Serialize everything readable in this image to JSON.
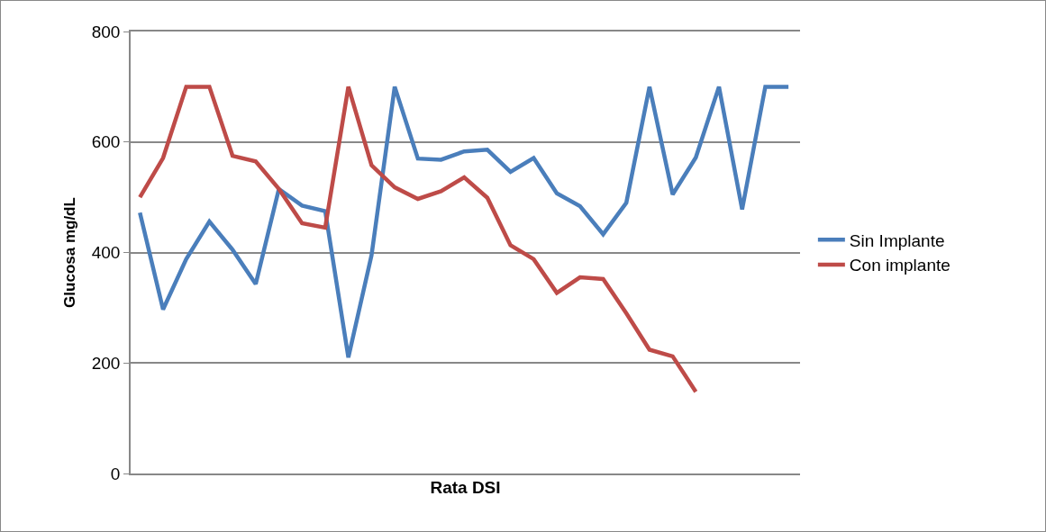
{
  "chart_data": {
    "type": "line",
    "xlabel": "Rata DSI",
    "ylabel": "Glucosa mg/dL",
    "categories": [
      null,
      null,
      null,
      null,
      null,
      null,
      null,
      null,
      null,
      null,
      null,
      null,
      null,
      null,
      null,
      null,
      null,
      null,
      null,
      null,
      null,
      null,
      null,
      null,
      null,
      null,
      null,
      null,
      null
    ],
    "series": [
      {
        "name": "Sin Implante",
        "color": "#4a7ebb",
        "values": [
          472,
          297,
          388,
          456,
          405,
          343,
          515,
          485,
          475,
          210,
          395,
          700,
          570,
          568,
          583,
          586,
          546,
          571,
          507,
          484,
          433,
          490,
          700,
          505,
          572,
          700,
          478,
          700,
          700
        ]
      },
      {
        "name": "Con implante",
        "color": "#be4b48",
        "values": [
          500,
          571,
          700,
          700,
          575,
          565,
          515,
          453,
          445,
          700,
          558,
          518,
          497,
          511,
          536,
          499,
          413,
          388,
          327,
          355,
          352,
          290,
          224,
          212,
          148,
          null,
          null,
          null,
          null
        ]
      }
    ],
    "ylim": [
      0,
      800
    ],
    "yticks": [
      0,
      200,
      400,
      600,
      800
    ],
    "grid": "y",
    "legend": "right",
    "marker": "none",
    "line_style": "solid",
    "tick_labels": "y"
  }
}
